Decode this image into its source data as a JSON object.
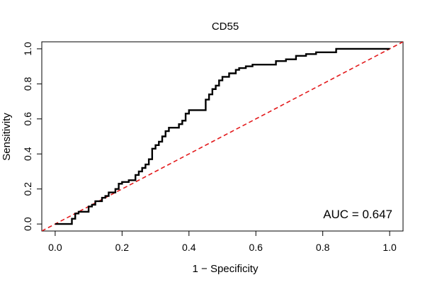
{
  "chart_data": {
    "type": "line",
    "title": "CD55",
    "xlabel": "1 − Specificity",
    "ylabel": "Sensitivity",
    "xlim": [
      -0.04,
      1.04
    ],
    "ylim": [
      -0.04,
      1.04
    ],
    "xticks": [
      0.0,
      0.2,
      0.4,
      0.6,
      0.8,
      1.0
    ],
    "xtick_labels": [
      "0.0",
      "0.2",
      "0.4",
      "0.6",
      "0.8",
      "1.0"
    ],
    "yticks": [
      0.0,
      0.2,
      0.4,
      0.6,
      0.8,
      1.0
    ],
    "ytick_labels": [
      "0.0",
      "0.2",
      "0.4",
      "0.6",
      "0.8",
      "1.0"
    ],
    "grid": false,
    "annotation": "AUC = 0.647",
    "series": [
      {
        "color": "#000000",
        "style": "step",
        "x": [
          0.0,
          0.05,
          0.06,
          0.07,
          0.1,
          0.11,
          0.12,
          0.14,
          0.15,
          0.16,
          0.18,
          0.19,
          0.2,
          0.22,
          0.24,
          0.25,
          0.26,
          0.27,
          0.28,
          0.29,
          0.3,
          0.31,
          0.32,
          0.33,
          0.34,
          0.37,
          0.38,
          0.39,
          0.4,
          0.41,
          0.44,
          0.45,
          0.46,
          0.47,
          0.48,
          0.49,
          0.5,
          0.52,
          0.54,
          0.55,
          0.57,
          0.59,
          0.63,
          0.66,
          0.69,
          0.72,
          0.75,
          0.78,
          0.84,
          1.0
        ],
        "y": [
          0.0,
          0.03,
          0.06,
          0.07,
          0.1,
          0.11,
          0.13,
          0.15,
          0.16,
          0.18,
          0.2,
          0.23,
          0.24,
          0.25,
          0.28,
          0.3,
          0.32,
          0.34,
          0.37,
          0.43,
          0.45,
          0.47,
          0.5,
          0.53,
          0.55,
          0.57,
          0.59,
          0.63,
          0.65,
          0.65,
          0.65,
          0.71,
          0.74,
          0.77,
          0.79,
          0.82,
          0.84,
          0.86,
          0.88,
          0.89,
          0.9,
          0.91,
          0.91,
          0.93,
          0.94,
          0.96,
          0.97,
          0.98,
          1.0,
          1.0
        ]
      },
      {
        "color": "#e31a1c",
        "style": "dashed",
        "x": [
          -0.04,
          1.04
        ],
        "y": [
          -0.04,
          1.04
        ]
      }
    ]
  }
}
